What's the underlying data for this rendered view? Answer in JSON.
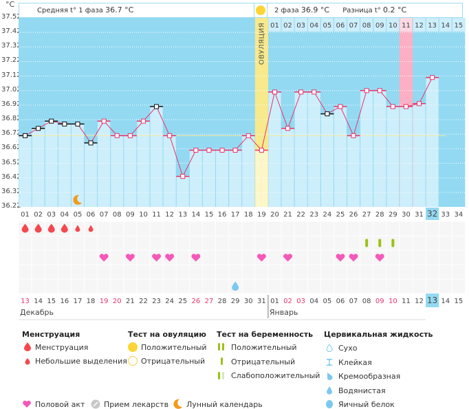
{
  "header": {
    "unit": "°C",
    "phase1_label": "Средняя t° 1 фаза",
    "phase1_value": "36.7 °C",
    "phase2_label": "2 фаза",
    "phase2_value": "36.9 °C",
    "diff_label": "Разница t°",
    "diff_value": "0.2 °C",
    "ovulation_label": "ОВУЛЯЦИЯ"
  },
  "chart_data": {
    "type": "line",
    "title": "Базальная температура",
    "ylabel": "°C",
    "ylim": [
      36.22,
      37.52
    ],
    "yticks": [
      "37.52",
      "37.42",
      "37.32",
      "37.22",
      "37.12",
      "37.02",
      "36.92",
      "36.82",
      "36.72",
      "36.62",
      "36.52",
      "36.42",
      "36.32",
      "36.22"
    ],
    "cycle_days": [
      "01",
      "02",
      "03",
      "04",
      "05",
      "06",
      "07",
      "08",
      "09",
      "10",
      "11",
      "12",
      "13",
      "14",
      "15",
      "16",
      "17",
      "18",
      "19",
      "20",
      "21",
      "22",
      "23",
      "24",
      "25",
      "26",
      "27",
      "28",
      "29",
      "30",
      "31",
      "32",
      "33",
      "34"
    ],
    "current_cycle_day": "32",
    "ovulation_day": "19",
    "coverline": 36.71,
    "series": [
      {
        "name": "Температура",
        "values": [
          36.71,
          36.76,
          36.81,
          36.79,
          36.79,
          36.66,
          36.81,
          36.71,
          36.71,
          36.81,
          36.91,
          36.71,
          36.43,
          36.61,
          36.61,
          36.61,
          36.61,
          36.71,
          36.61,
          37.01,
          36.76,
          37.01,
          37.01,
          36.86,
          36.91,
          36.71,
          37.02,
          37.02,
          36.91,
          36.91,
          36.93,
          37.11
        ],
        "excluded_days": [
          "01",
          "02",
          "03",
          "04",
          "05",
          "06",
          "11",
          "24"
        ]
      }
    ],
    "second_phase_day_labels": [
      "01",
      "02",
      "03",
      "04",
      "05",
      "06",
      "07",
      "08",
      "09",
      "10",
      "11",
      "12",
      "13",
      "14",
      "15"
    ],
    "highlighted_second_phase_day": "11",
    "calendar_dates": [
      {
        "d": "13",
        "red": true
      },
      {
        "d": "14"
      },
      {
        "d": "15"
      },
      {
        "d": "16"
      },
      {
        "d": "17"
      },
      {
        "d": "18"
      },
      {
        "d": "19",
        "red": true
      },
      {
        "d": "20",
        "red": true
      },
      {
        "d": "21"
      },
      {
        "d": "22"
      },
      {
        "d": "23"
      },
      {
        "d": "24"
      },
      {
        "d": "25"
      },
      {
        "d": "26",
        "red": true
      },
      {
        "d": "27",
        "red": true
      },
      {
        "d": "28"
      },
      {
        "d": "29"
      },
      {
        "d": "30"
      },
      {
        "d": "31"
      },
      {
        "d": "01"
      },
      {
        "d": "02",
        "red": true
      },
      {
        "d": "03",
        "red": true
      },
      {
        "d": "04"
      },
      {
        "d": "05"
      },
      {
        "d": "06"
      },
      {
        "d": "07"
      },
      {
        "d": "08"
      },
      {
        "d": "09",
        "red": true
      },
      {
        "d": "10",
        "red": true
      },
      {
        "d": "11"
      },
      {
        "d": "12"
      },
      {
        "d": "13",
        "today": true
      },
      {
        "d": "14"
      },
      {
        "d": "15"
      }
    ],
    "months": [
      {
        "label": "Декабрь",
        "start_index": 0
      },
      {
        "label": "Январь",
        "start_index": 19
      }
    ],
    "markers": {
      "menstruation": [
        "01",
        "02",
        "03",
        "04"
      ],
      "spotting": [
        "05",
        "06"
      ],
      "moon": [
        "05"
      ],
      "pregnancy_test_negative": [
        "27",
        "28",
        "29"
      ],
      "intercourse": [
        "07",
        "09",
        "11",
        "12",
        "14",
        "19",
        "21",
        "25",
        "26",
        "28"
      ],
      "cervical_fluid_watery": [
        "17"
      ]
    }
  },
  "legend": {
    "menstruation": {
      "title": "Менструация",
      "items": [
        "Менструация",
        "Небольшие выделения"
      ]
    },
    "ovulation_test": {
      "title": "Тест на овуляцию",
      "items": [
        "Положительный",
        "Отрицательный"
      ]
    },
    "pregnancy_test": {
      "title": "Тест на беременность",
      "items": [
        "Положительный",
        "Отрицательный",
        "Слабоположительный"
      ]
    },
    "cervical_fluid": {
      "title": "Цервикальная жидкость",
      "items": [
        "Сухо",
        "Клейкая",
        "Кремообразная",
        "Водянистая",
        "Яичный белок"
      ]
    },
    "other": [
      "Половой акт",
      "Прием лекарств",
      "Лунный календарь"
    ]
  },
  "colors": {
    "sky": "#93d9f2",
    "bar": "#cdeefb",
    "line": "#e8336a",
    "ovulation": "#f7e98c",
    "highlight": "#fdb0c4",
    "coverline": "#f5eb9a",
    "red_date": "#e8336a",
    "heart": "#f558b8",
    "drop": "#f5474e",
    "test": "#9cc114",
    "fluid": "#7cc8f0",
    "moon": "#f39a1e"
  }
}
